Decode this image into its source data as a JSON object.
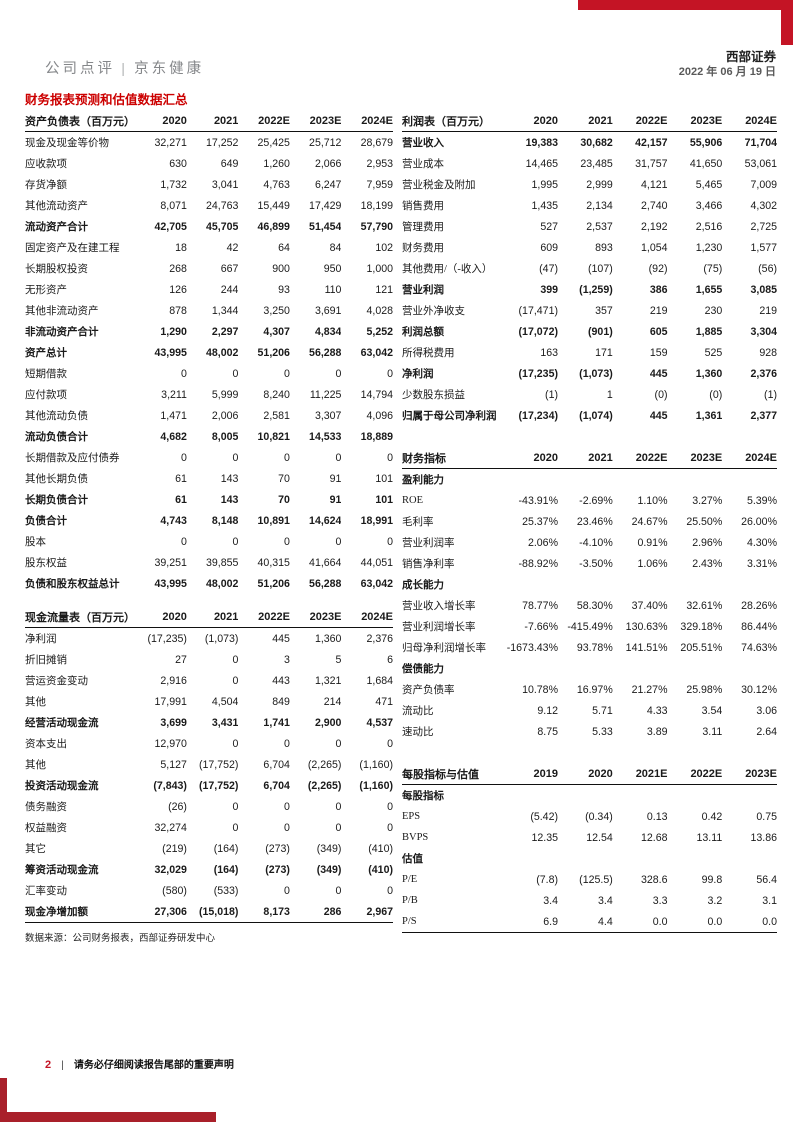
{
  "page": {
    "header": {
      "section_label": "公司点评 | 京东健康",
      "brand": "西部证券",
      "date": "2022 年 06 月 19 日"
    },
    "title": "财务报表预测和估值数据汇总",
    "source_note": "数据来源：公司财务报表，西部证券研发中心",
    "footer": {
      "page_number": "2",
      "divider": "|",
      "disclaimer": "请务必仔细阅读报告尾部的重要声明"
    },
    "colors": {
      "accent_red_top": "#C41425",
      "accent_red_bottom": "#A9202A",
      "title_red": "#CC0000",
      "header_gray": "#85878A",
      "date_gray": "#595959"
    }
  },
  "tables": {
    "balance_sheet": {
      "title": "资产负债表（百万元）",
      "years": [
        "2020",
        "2021",
        "2022E",
        "2023E",
        "2024E"
      ],
      "bottom_rule": false,
      "rows": [
        {
          "label": "现金及现金等价物",
          "values": [
            "32,271",
            "17,252",
            "25,425",
            "25,712",
            "28,679"
          ]
        },
        {
          "label": "应收款项",
          "values": [
            "630",
            "649",
            "1,260",
            "2,066",
            "2,953"
          ]
        },
        {
          "label": "存货净额",
          "values": [
            "1,732",
            "3,041",
            "4,763",
            "6,247",
            "7,959"
          ]
        },
        {
          "label": "其他流动资产",
          "values": [
            "8,071",
            "24,763",
            "15,449",
            "17,429",
            "18,199"
          ]
        },
        {
          "label": "流动资产合计",
          "style": "bold",
          "values": [
            "42,705",
            "45,705",
            "46,899",
            "51,454",
            "57,790"
          ]
        },
        {
          "label": "固定资产及在建工程",
          "values": [
            "18",
            "42",
            "64",
            "84",
            "102"
          ]
        },
        {
          "label": "长期股权投资",
          "values": [
            "268",
            "667",
            "900",
            "950",
            "1,000"
          ]
        },
        {
          "label": "无形资产",
          "values": [
            "126",
            "244",
            "93",
            "110",
            "121"
          ]
        },
        {
          "label": "其他非流动资产",
          "values": [
            "878",
            "1,344",
            "3,250",
            "3,691",
            "4,028"
          ]
        },
        {
          "label": "非流动资产合计",
          "style": "bold",
          "values": [
            "1,290",
            "2,297",
            "4,307",
            "4,834",
            "5,252"
          ]
        },
        {
          "label": "资产总计",
          "style": "bold",
          "values": [
            "43,995",
            "48,002",
            "51,206",
            "56,288",
            "63,042"
          ]
        },
        {
          "label": "短期借款",
          "values": [
            "0",
            "0",
            "0",
            "0",
            "0"
          ]
        },
        {
          "label": "应付款项",
          "values": [
            "3,211",
            "5,999",
            "8,240",
            "11,225",
            "14,794"
          ]
        },
        {
          "label": "其他流动负债",
          "values": [
            "1,471",
            "2,006",
            "2,581",
            "3,307",
            "4,096"
          ]
        },
        {
          "label": "流动负债合计",
          "style": "bold",
          "values": [
            "4,682",
            "8,005",
            "10,821",
            "14,533",
            "18,889"
          ]
        },
        {
          "label": "长期借款及应付债券",
          "values": [
            "0",
            "0",
            "0",
            "0",
            "0"
          ]
        },
        {
          "label": "其他长期负债",
          "values": [
            "61",
            "143",
            "70",
            "91",
            "101"
          ]
        },
        {
          "label": "长期负债合计",
          "style": "bold",
          "values": [
            "61",
            "143",
            "70",
            "91",
            "101"
          ]
        },
        {
          "label": "负债合计",
          "style": "bold",
          "values": [
            "4,743",
            "8,148",
            "10,891",
            "14,624",
            "18,991"
          ]
        },
        {
          "label": "股本",
          "values": [
            "0",
            "0",
            "0",
            "0",
            "0"
          ]
        },
        {
          "label": "股东权益",
          "values": [
            "39,251",
            "39,855",
            "40,315",
            "41,664",
            "44,051"
          ]
        },
        {
          "label": "负债和股东权益总计",
          "style": "bold",
          "values": [
            "43,995",
            "48,002",
            "51,206",
            "56,288",
            "63,042"
          ]
        }
      ]
    },
    "cash_flow": {
      "title": "现金流量表（百万元）",
      "years": [
        "2020",
        "2021",
        "2022E",
        "2023E",
        "2024E"
      ],
      "bottom_rule": true,
      "rows": [
        {
          "label": "净利润",
          "values": [
            "(17,235)",
            "(1,073)",
            "445",
            "1,360",
            "2,376"
          ]
        },
        {
          "label": "折旧摊销",
          "values": [
            "27",
            "0",
            "3",
            "5",
            "6"
          ]
        },
        {
          "label": "营运资金变动",
          "values": [
            "2,916",
            "0",
            "443",
            "1,321",
            "1,684"
          ]
        },
        {
          "label": "其他",
          "values": [
            "17,991",
            "4,504",
            "849",
            "214",
            "471"
          ]
        },
        {
          "label": "经营活动现金流",
          "style": "bold",
          "values": [
            "3,699",
            "3,431",
            "1,741",
            "2,900",
            "4,537"
          ]
        },
        {
          "label": "资本支出",
          "values": [
            "12,970",
            "0",
            "0",
            "0",
            "0"
          ]
        },
        {
          "label": "其他",
          "values": [
            "5,127",
            "(17,752)",
            "6,704",
            "(2,265)",
            "(1,160)"
          ]
        },
        {
          "label": "投资活动现金流",
          "style": "bold",
          "values": [
            "(7,843)",
            "(17,752)",
            "6,704",
            "(2,265)",
            "(1,160)"
          ]
        },
        {
          "label": "债务融资",
          "values": [
            "(26)",
            "0",
            "0",
            "0",
            "0"
          ]
        },
        {
          "label": "权益融资",
          "values": [
            "32,274",
            "0",
            "0",
            "0",
            "0"
          ]
        },
        {
          "label": "其它",
          "values": [
            "(219)",
            "(164)",
            "(273)",
            "(349)",
            "(410)"
          ]
        },
        {
          "label": "筹资活动现金流",
          "style": "bold",
          "values": [
            "32,029",
            "(164)",
            "(273)",
            "(349)",
            "(410)"
          ]
        },
        {
          "label": "汇率变动",
          "values": [
            "(580)",
            "(533)",
            "0",
            "0",
            "0"
          ]
        },
        {
          "label": "现金净增加额",
          "style": "bold",
          "values": [
            "27,306",
            "(15,018)",
            "8,173",
            "286",
            "2,967"
          ]
        }
      ]
    },
    "income": {
      "title": "利润表（百万元）",
      "years": [
        "2020",
        "2021",
        "2022E",
        "2023E",
        "2024E"
      ],
      "bottom_rule": false,
      "rows": [
        {
          "label": "营业收入",
          "style": "bold",
          "values": [
            "19,383",
            "30,682",
            "42,157",
            "55,906",
            "71,704"
          ]
        },
        {
          "label": "营业成本",
          "values": [
            "14,465",
            "23,485",
            "31,757",
            "41,650",
            "53,061"
          ]
        },
        {
          "label": "营业税金及附加",
          "values": [
            "1,995",
            "2,999",
            "4,121",
            "5,465",
            "7,009"
          ]
        },
        {
          "label": "销售费用",
          "values": [
            "1,435",
            "2,134",
            "2,740",
            "3,466",
            "4,302"
          ]
        },
        {
          "label": "管理费用",
          "values": [
            "527",
            "2,537",
            "2,192",
            "2,516",
            "2,725"
          ]
        },
        {
          "label": "财务费用",
          "values": [
            "609",
            "893",
            "1,054",
            "1,230",
            "1,577"
          ]
        },
        {
          "label": "其他费用/（-收入）",
          "values": [
            "(47)",
            "(107)",
            "(92)",
            "(75)",
            "(56)"
          ]
        },
        {
          "label": "营业利润",
          "style": "bold",
          "values": [
            "399",
            "(1,259)",
            "386",
            "1,655",
            "3,085"
          ]
        },
        {
          "label": "营业外净收支",
          "values": [
            "(17,471)",
            "357",
            "219",
            "230",
            "219"
          ]
        },
        {
          "label": "利润总额",
          "style": "bold",
          "values": [
            "(17,072)",
            "(901)",
            "605",
            "1,885",
            "3,304"
          ]
        },
        {
          "label": "所得税费用",
          "values": [
            "163",
            "171",
            "159",
            "525",
            "928"
          ]
        },
        {
          "label": "净利润",
          "style": "bold",
          "values": [
            "(17,235)",
            "(1,073)",
            "445",
            "1,360",
            "2,376"
          ]
        },
        {
          "label": "少数股东损益",
          "values": [
            "(1)",
            "1",
            "(0)",
            "(0)",
            "(1)"
          ]
        },
        {
          "label": "归属于母公司净利润",
          "style": "bold",
          "values": [
            "(17,234)",
            "(1,074)",
            "445",
            "1,361",
            "2,377"
          ]
        }
      ]
    },
    "fin_indicators": {
      "title": "财务指标",
      "years": [
        "2020",
        "2021",
        "2022E",
        "2023E",
        "2024E"
      ],
      "bottom_rule": false,
      "rows": [
        {
          "label": "盈利能力",
          "style": "section",
          "values": []
        },
        {
          "label": "ROE",
          "values": [
            "-43.91%",
            "-2.69%",
            "1.10%",
            "3.27%",
            "5.39%"
          ]
        },
        {
          "label": "毛利率",
          "values": [
            "25.37%",
            "23.46%",
            "24.67%",
            "25.50%",
            "26.00%"
          ]
        },
        {
          "label": "营业利润率",
          "values": [
            "2.06%",
            "-4.10%",
            "0.91%",
            "2.96%",
            "4.30%"
          ]
        },
        {
          "label": "销售净利率",
          "values": [
            "-88.92%",
            "-3.50%",
            "1.06%",
            "2.43%",
            "3.31%"
          ]
        },
        {
          "label": "成长能力",
          "style": "section",
          "values": []
        },
        {
          "label": "营业收入增长率",
          "values": [
            "78.77%",
            "58.30%",
            "37.40%",
            "32.61%",
            "28.26%"
          ]
        },
        {
          "label": "营业利润增长率",
          "values": [
            "-7.66%",
            "-415.49%",
            "130.63%",
            "329.18%",
            "86.44%"
          ]
        },
        {
          "label": "归母净利润增长率",
          "values": [
            "-1673.43%",
            "93.78%",
            "141.51%",
            "205.51%",
            "74.63%"
          ]
        },
        {
          "label": "偿债能力",
          "style": "section",
          "values": []
        },
        {
          "label": "资产负债率",
          "values": [
            "10.78%",
            "16.97%",
            "21.27%",
            "25.98%",
            "30.12%"
          ]
        },
        {
          "label": "流动比",
          "values": [
            "9.12",
            "5.71",
            "4.33",
            "3.54",
            "3.06"
          ]
        },
        {
          "label": "速动比",
          "values": [
            "8.75",
            "5.33",
            "3.89",
            "3.11",
            "2.64"
          ]
        }
      ]
    },
    "per_share": {
      "title": "每股指标与估值",
      "years": [
        "2019",
        "2020",
        "2021E",
        "2022E",
        "2023E"
      ],
      "bottom_rule": true,
      "rows": [
        {
          "label": "每股指标",
          "style": "section",
          "values": []
        },
        {
          "label": "EPS",
          "values": [
            "(5.42)",
            "(0.34)",
            "0.13",
            "0.42",
            "0.75"
          ]
        },
        {
          "label": "BVPS",
          "values": [
            "12.35",
            "12.54",
            "12.68",
            "13.11",
            "13.86"
          ]
        },
        {
          "label": "估值",
          "style": "section",
          "values": []
        },
        {
          "label": "P/E",
          "values": [
            "(7.8)",
            "(125.5)",
            "328.6",
            "99.8",
            "56.4"
          ]
        },
        {
          "label": "P/B",
          "values": [
            "3.4",
            "3.4",
            "3.3",
            "3.2",
            "3.1"
          ]
        },
        {
          "label": "P/S",
          "values": [
            "6.9",
            "4.4",
            "0.0",
            "0.0",
            "0.0"
          ]
        }
      ]
    }
  }
}
